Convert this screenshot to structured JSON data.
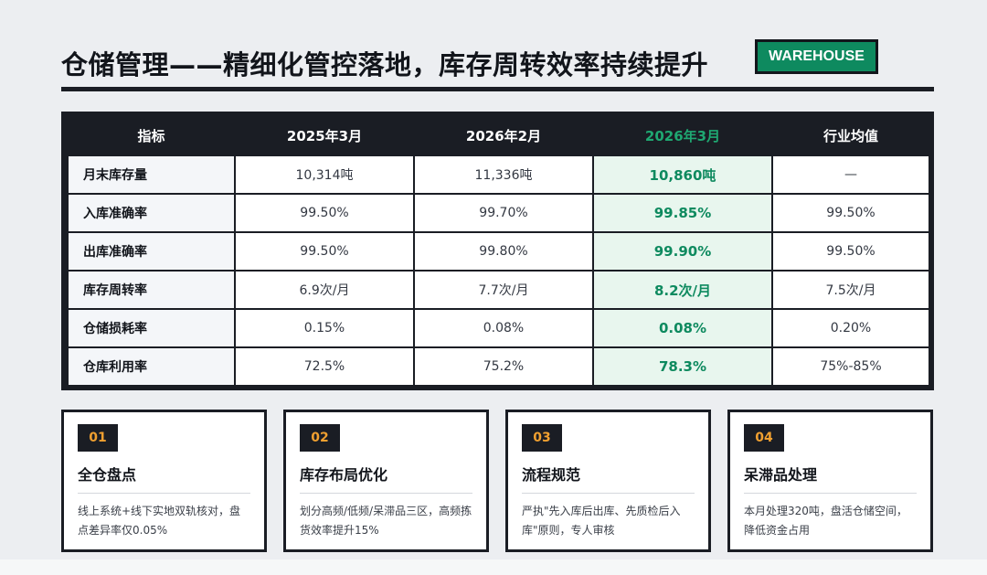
{
  "header": {
    "title": "仓储管理——精细化管控落地，库存周转效率持续提升",
    "tag": "WAREHOUSE"
  },
  "table": {
    "columns": [
      "指标",
      "2025年3月",
      "2026年2月",
      "2026年3月",
      "行业均值"
    ],
    "highlight_color": "#0e8a5f",
    "rows": [
      [
        "月末库存量",
        "10,314吨",
        "11,336吨",
        "10,860吨",
        "—"
      ],
      [
        "入库准确率",
        "99.50%",
        "99.70%",
        "99.85%",
        "99.50%"
      ],
      [
        "出库准确率",
        "99.50%",
        "99.80%",
        "99.90%",
        "99.50%"
      ],
      [
        "库存周转率",
        "6.9次/月",
        "7.7次/月",
        "8.2次/月",
        "7.5次/月"
      ],
      [
        "仓储损耗率",
        "0.15%",
        "0.08%",
        "0.08%",
        "0.20%"
      ],
      [
        "仓库利用率",
        "72.5%",
        "75.2%",
        "78.3%",
        "75%-85%"
      ]
    ]
  },
  "cards": [
    {
      "num": "01",
      "title": "全仓盘点",
      "desc": "线上系统+线下实地双轨核对，盘点差异率仅0.05%"
    },
    {
      "num": "02",
      "title": "库存布局优化",
      "desc": "划分高频/低频/呆滞品三区，高频拣货效率提升15%"
    },
    {
      "num": "03",
      "title": "流程规范",
      "desc": "严执\"先入库后出库、先质检后入库\"原则，专人审核"
    },
    {
      "num": "04",
      "title": "呆滞品处理",
      "desc": "本月处理320吨，盘活仓储空间，降低资金占用"
    }
  ]
}
